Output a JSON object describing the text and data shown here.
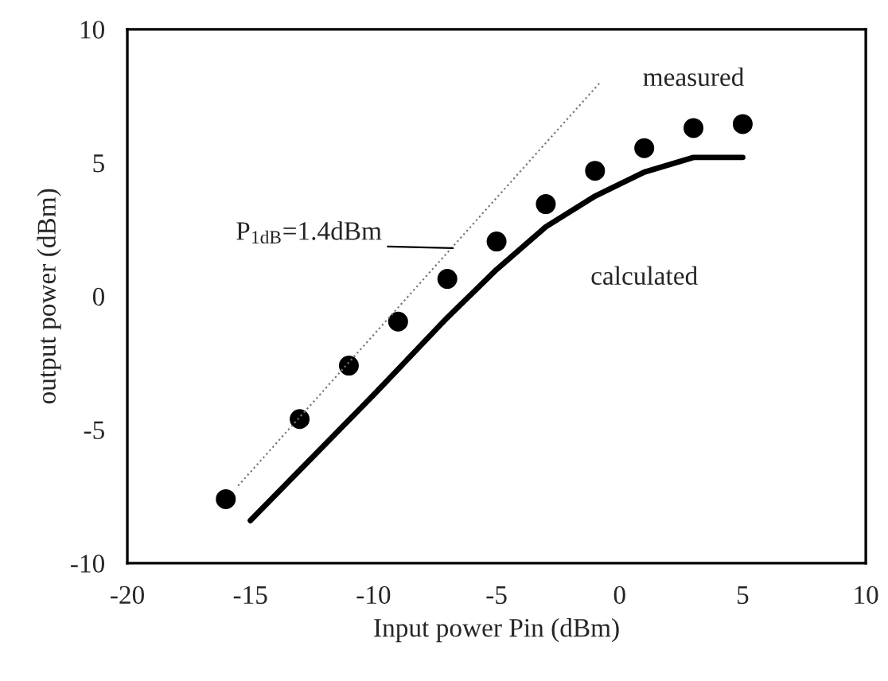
{
  "chart_data": {
    "type": "scatter",
    "xlabel": "Input power Pin (dBm)",
    "ylabel": "output power (dBm)",
    "xlim": [
      -20,
      10
    ],
    "xticks": [
      -20,
      -15,
      -10,
      -5,
      0,
      5,
      10
    ],
    "ylim": [
      -10,
      10
    ],
    "yticks": [
      -10,
      -5,
      0,
      5,
      10
    ],
    "grid": false,
    "legend": false,
    "series": [
      {
        "name": "measured",
        "marker": "circle",
        "color": "#000000",
        "x": [
          -16,
          -13,
          -11,
          -9,
          -7,
          -5,
          -3,
          -1,
          1,
          3,
          5
        ],
        "values": [
          -7.6,
          -4.6,
          -2.6,
          -0.95,
          0.65,
          2.05,
          3.45,
          4.7,
          5.55,
          6.3,
          6.45
        ]
      },
      {
        "name": "calculated",
        "type": "line",
        "line_style": "solid",
        "color": "#000000",
        "x": [
          -15,
          -10,
          -7,
          -5,
          -3,
          -1,
          1,
          3,
          5
        ],
        "values": [
          -8.4,
          -3.7,
          -0.8,
          1.0,
          2.6,
          3.75,
          4.65,
          5.2,
          5.2
        ]
      },
      {
        "type": "line",
        "line_style": "dotted",
        "color": "#777777",
        "x": [
          -15.5,
          -0.8
        ],
        "values": [
          -7.1,
          8.0
        ]
      }
    ],
    "annotations": [
      "P$_{1dB}$=1.4dBm"
    ]
  }
}
